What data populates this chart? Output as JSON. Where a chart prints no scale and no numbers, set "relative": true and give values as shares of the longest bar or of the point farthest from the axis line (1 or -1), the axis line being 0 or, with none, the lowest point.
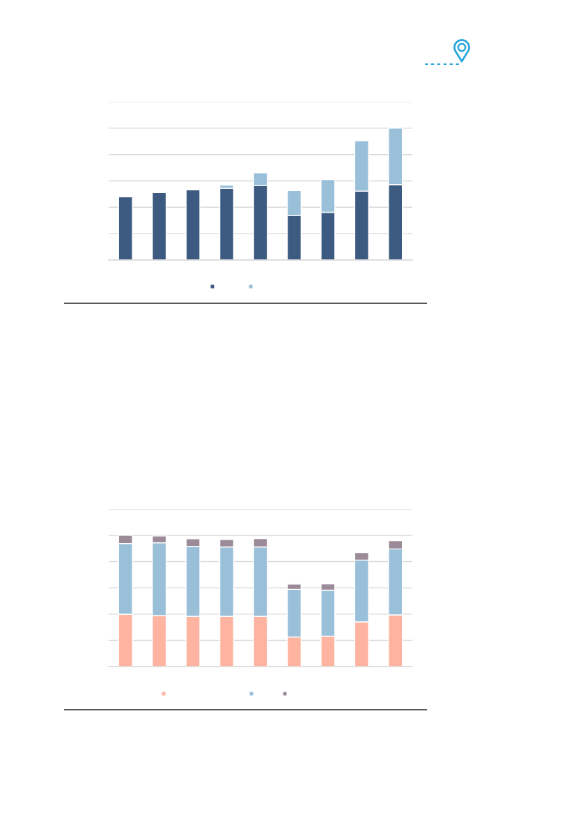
{
  "chart_data": [
    {
      "type": "bar",
      "stacked": true,
      "relative": true,
      "grid": "y",
      "categories": [
        null,
        null,
        null,
        null,
        null,
        null,
        null,
        null,
        null
      ],
      "series": [
        {
          "color": "#3d5a80",
          "values": [
            0.48,
            0.511,
            0.532,
            0.544,
            0.565,
            0.336,
            0.362,
            0.523,
            0.572
          ]
        },
        {
          "color": "#9abfd8",
          "values": [
            0,
            0,
            0,
            0.024,
            0.097,
            0.191,
            0.248,
            0.383,
            0.428
          ]
        }
      ]
    },
    {
      "type": "bar",
      "stacked": true,
      "relative": true,
      "grid": "y",
      "categories": [
        null,
        null,
        null,
        null,
        null,
        null,
        null,
        null,
        null
      ],
      "series": [
        {
          "color": "#ffb3a1",
          "values": [
            0.399,
            0.389,
            0.383,
            0.383,
            0.383,
            0.226,
            0.232,
            0.341,
            0.394
          ]
        },
        {
          "color": "#9abfd8",
          "values": [
            0.538,
            0.554,
            0.533,
            0.528,
            0.528,
            0.362,
            0.35,
            0.47,
            0.502
          ]
        },
        {
          "color": "#9b8a98",
          "values": [
            0.063,
            0.052,
            0.057,
            0.057,
            0.063,
            0.04,
            0.047,
            0.057,
            0.063
          ]
        }
      ]
    }
  ]
}
